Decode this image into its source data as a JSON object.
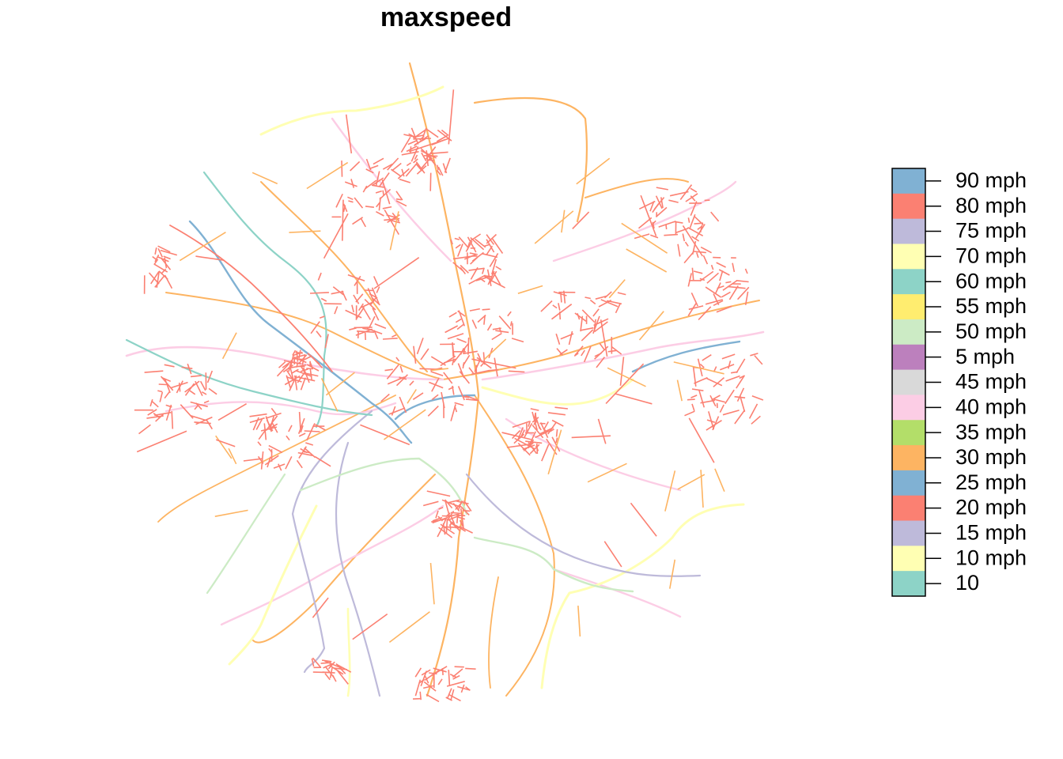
{
  "title": "maxspeed",
  "legend": {
    "entries": [
      {
        "label": "90 mph",
        "color": "#80B1D3"
      },
      {
        "label": "80 mph",
        "color": "#FB8072"
      },
      {
        "label": "75 mph",
        "color": "#BEBADA"
      },
      {
        "label": "70 mph",
        "color": "#FFFFB3"
      },
      {
        "label": "60 mph",
        "color": "#8DD3C7"
      },
      {
        "label": "55 mph",
        "color": "#FFED6F"
      },
      {
        "label": "50 mph",
        "color": "#CCEBC5"
      },
      {
        "label": "5 mph",
        "color": "#BC80BD"
      },
      {
        "label": "45 mph",
        "color": "#D9D9D9"
      },
      {
        "label": "40 mph",
        "color": "#FCCDE5"
      },
      {
        "label": "35 mph",
        "color": "#B3DE69"
      },
      {
        "label": "30 mph",
        "color": "#FDB462"
      },
      {
        "label": "25 mph",
        "color": "#80B1D3"
      },
      {
        "label": "20 mph",
        "color": "#FB8072"
      },
      {
        "label": "15 mph",
        "color": "#BEBADA"
      },
      {
        "label": "10 mph",
        "color": "#FFFFB3"
      },
      {
        "label": "10",
        "color": "#8DD3C7"
      }
    ]
  }
}
